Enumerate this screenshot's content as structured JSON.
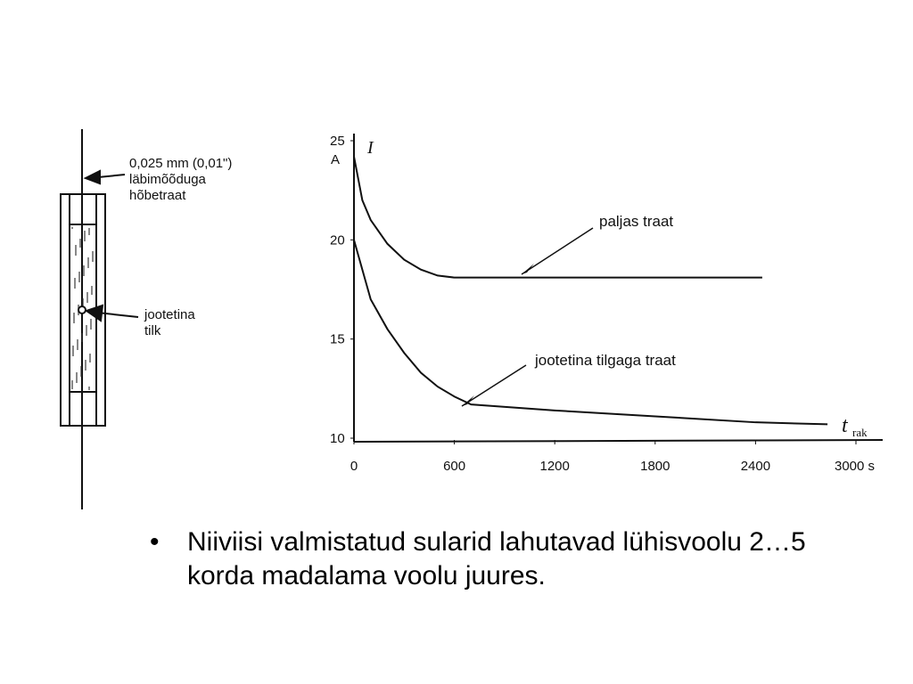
{
  "diagram": {
    "wire_label": [
      "0,025 mm (0,01\")",
      "läbimõõduga",
      "hõbetraat"
    ],
    "drop_label": [
      "jootetina",
      "tilk"
    ]
  },
  "chart_data": {
    "type": "line",
    "y_label": "I",
    "y_unit": "A",
    "x_label": "t",
    "x_label_sub": "rak",
    "xlim": [
      0,
      3000
    ],
    "ylim": [
      10,
      25
    ],
    "xticks": [
      0,
      600,
      1200,
      1800,
      {
        "value": 3000,
        "label": "3000 s"
      }
    ],
    "xticks_extra": [
      2400
    ],
    "yticks": [
      10,
      15,
      20,
      25
    ],
    "series": [
      {
        "name": "paljas traat",
        "color": "#111111",
        "x": [
          0,
          50,
          100,
          200,
          300,
          400,
          500,
          600,
          1200,
          1800,
          2440
        ],
        "values": [
          24.2,
          22,
          21,
          19.8,
          19,
          18.5,
          18.2,
          18.1,
          18.1,
          18.1,
          18.1
        ]
      },
      {
        "name": "jootetina tilgaga traat",
        "color": "#111111",
        "x": [
          0,
          100,
          200,
          300,
          400,
          500,
          600,
          700,
          1200,
          1800,
          2400,
          2830
        ],
        "values": [
          20,
          17,
          15.5,
          14.3,
          13.3,
          12.6,
          12.1,
          11.7,
          11.4,
          11.1,
          10.8,
          10.7
        ]
      }
    ]
  },
  "bullet": "Niiviisi valmistatud sularid lahutavad lühisvoolu 2…5 korda madalama voolu juures."
}
